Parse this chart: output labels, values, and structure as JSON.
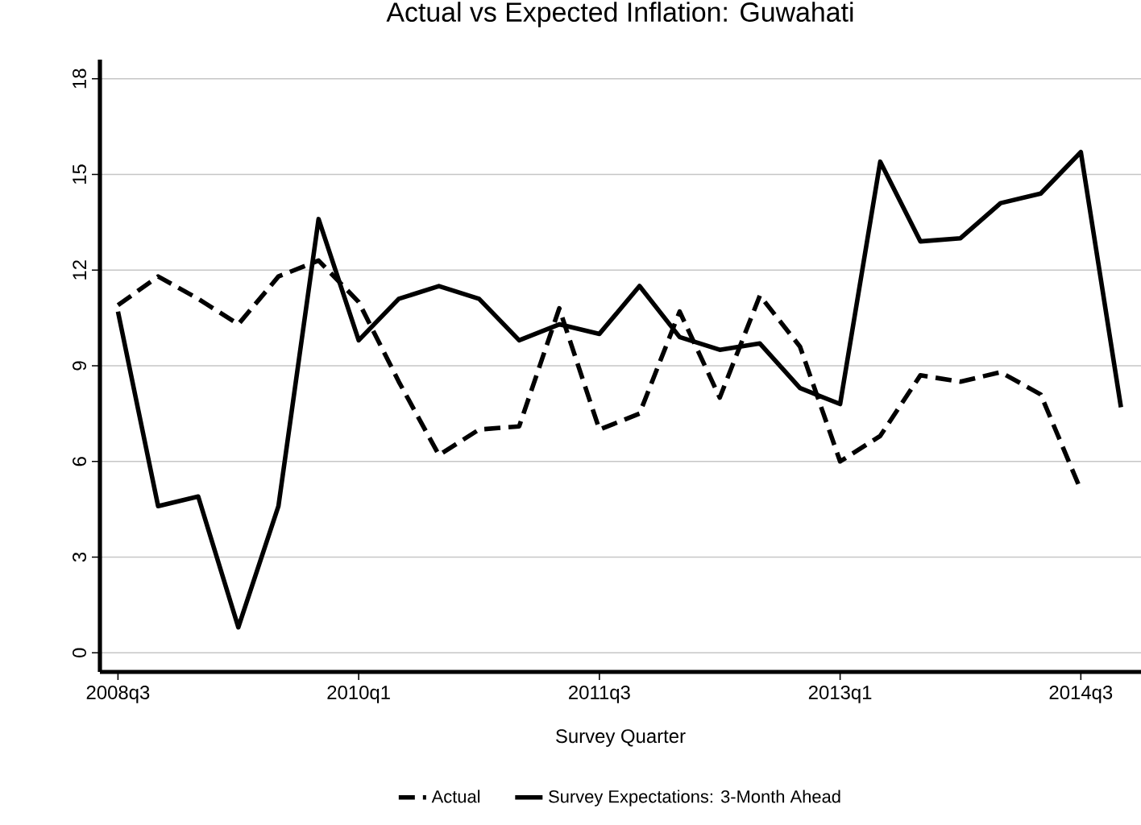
{
  "chart_data": {
    "type": "line",
    "title": "Actual vs Expected Inflation: Guwahati",
    "xlabel": "Survey Quarter",
    "categories": [
      "2008q3",
      null,
      null,
      null,
      null,
      null,
      "2010q1",
      null,
      null,
      null,
      null,
      null,
      "2011q3",
      null,
      null,
      null,
      null,
      null,
      "2013q1",
      null,
      null,
      null,
      null,
      null,
      "2014q3",
      null
    ],
    "series": [
      {
        "name": "Actual",
        "color": "#000000",
        "line_style": "dashed",
        "values": [
          10.9,
          11.8,
          11.1,
          10.3,
          11.8,
          12.3,
          11.0,
          8.5,
          6.2,
          7.0,
          7.1,
          10.8,
          7.0,
          7.5,
          10.7,
          8.0,
          11.2,
          9.6,
          6.0,
          6.8,
          8.7,
          8.5,
          8.8,
          8.1,
          5.1,
          null
        ]
      },
      {
        "name": "Survey Expectations: 3-Month Ahead",
        "color": "#000000",
        "line_style": "solid",
        "values": [
          10.7,
          4.6,
          4.9,
          0.8,
          4.6,
          13.6,
          9.8,
          11.1,
          11.5,
          11.1,
          9.8,
          10.3,
          10.0,
          11.5,
          9.9,
          9.5,
          9.7,
          8.3,
          7.8,
          15.4,
          12.9,
          13.0,
          14.1,
          14.4,
          15.7,
          7.7
        ]
      }
    ],
    "ylim": [
      -0.6,
      18.6
    ],
    "yticks": [
      0,
      3,
      6,
      9,
      12,
      15,
      18
    ],
    "grid": "y",
    "legend": "bottom",
    "marker": "none"
  }
}
